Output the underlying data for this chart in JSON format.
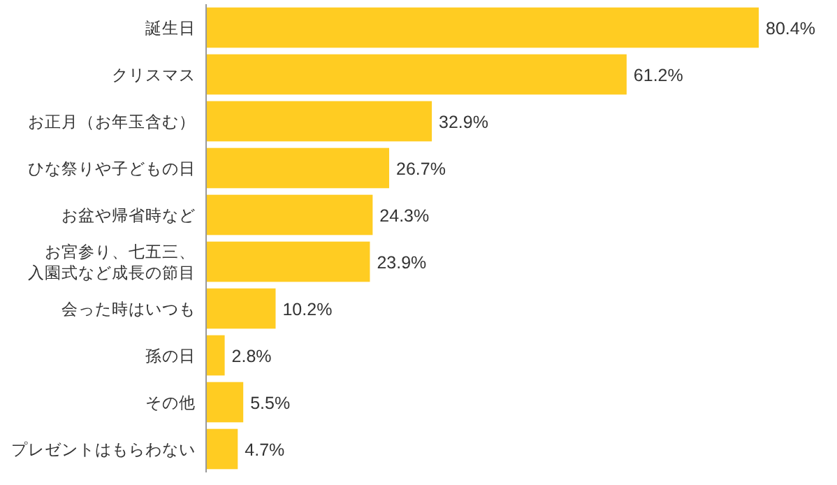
{
  "chart_data": {
    "type": "bar",
    "orientation": "horizontal",
    "categories": [
      "誕生日",
      "クリスマス",
      "お正月（お年玉含む）",
      "ひな祭りや子どもの日",
      "お盆や帰省時など",
      "お宮参り、七五三、入園式など成長の節目",
      "会った時はいつも",
      "孫の日",
      "その他",
      "プレゼントはもらわない"
    ],
    "values": [
      80.4,
      61.2,
      32.9,
      26.7,
      24.3,
      23.9,
      10.2,
      2.8,
      5.5,
      4.7
    ],
    "value_labels": [
      "80.4%",
      "61.2%",
      "32.9%",
      "26.7%",
      "24.3%",
      "23.9%",
      "10.2%",
      "2.8%",
      "5.5%",
      "4.7%"
    ],
    "color": "#ffcc22"
  }
}
